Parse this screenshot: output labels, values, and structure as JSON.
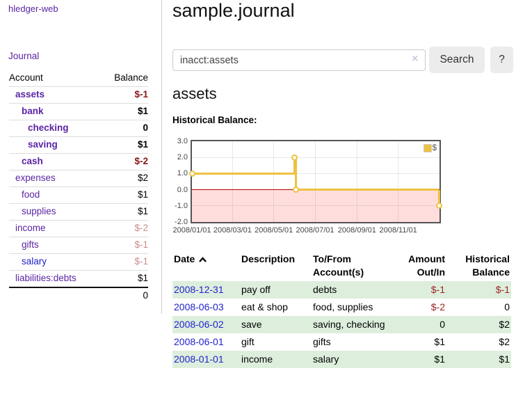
{
  "app": {
    "brand": "hledger-web"
  },
  "colors": {
    "purple_link": "#5a24a4",
    "blue_link": "#2222cc",
    "negative_strong": "#8b1616",
    "negative_soft": "#c98b8b",
    "negative_table": "#9d2424",
    "stripe_green": "#ddeedd",
    "series_yellow": "#edc240",
    "zero_line_red": "#bb0000",
    "below_zero_pink": "#ffdddd",
    "chart_border": "#545454",
    "button_bg": "#ececec"
  },
  "sidebar": {
    "journal_label": "Journal",
    "table": {
      "account_header": "Account",
      "balance_header": "Balance",
      "accounts": [
        {
          "label": "assets",
          "depth": 1,
          "bold": true,
          "link_color": "purple",
          "balance": "$-1",
          "balance_class": "neg-strong"
        },
        {
          "label": "bank",
          "depth": 2,
          "bold": true,
          "link_color": "purple",
          "balance": "$1",
          "balance_class": ""
        },
        {
          "label": "checking",
          "depth": 3,
          "bold": true,
          "link_color": "purple",
          "balance": "0",
          "balance_class": ""
        },
        {
          "label": "saving",
          "depth": 3,
          "bold": true,
          "link_color": "purple",
          "balance": "$1",
          "balance_class": ""
        },
        {
          "label": "cash",
          "depth": 2,
          "bold": true,
          "link_color": "purple",
          "balance": "$-2",
          "balance_class": "neg-strong"
        },
        {
          "label": "expenses",
          "depth": 1,
          "bold": false,
          "link_color": "purple",
          "balance": "$2",
          "balance_class": ""
        },
        {
          "label": "food",
          "depth": 2,
          "bold": false,
          "link_color": "purple",
          "balance": "$1",
          "balance_class": ""
        },
        {
          "label": "supplies",
          "depth": 2,
          "bold": false,
          "link_color": "purple",
          "balance": "$1",
          "balance_class": ""
        },
        {
          "label": "income",
          "depth": 1,
          "bold": false,
          "link_color": "purple",
          "balance": "$-2",
          "balance_class": "neg-soft"
        },
        {
          "label": "gifts",
          "depth": 2,
          "bold": false,
          "link_color": "purple",
          "balance": "$-1",
          "balance_class": "neg-soft"
        },
        {
          "label": "salary",
          "depth": 2,
          "bold": false,
          "link_color": "blue",
          "balance": "$-1",
          "balance_class": "neg-soft"
        },
        {
          "label": "liabilities:debts",
          "depth": 1,
          "bold": false,
          "link_color": "purple",
          "balance": "$1",
          "balance_class": ""
        }
      ],
      "total": "0"
    }
  },
  "main": {
    "title": "sample.journal",
    "search": {
      "value": "inacct:assets",
      "clear_icon": "×",
      "button": "Search",
      "help_button": "?"
    },
    "account_heading": "assets",
    "chart_heading": "Historical Balance:",
    "register": {
      "headers": {
        "date": "Date",
        "description": "Description",
        "accounts": "To/From Account(s)",
        "amount": "Amount Out/In",
        "balance": "Historical Balance"
      },
      "rows": [
        {
          "date": "2008-12-31",
          "description": "pay off",
          "accounts": "debts",
          "amount": "$-1",
          "amount_class": "neg",
          "balance": "$-1",
          "balance_class": "neg"
        },
        {
          "date": "2008-06-03",
          "description": "eat & shop",
          "accounts": "food, supplies",
          "amount": "$-2",
          "amount_class": "neg",
          "balance": "0",
          "balance_class": ""
        },
        {
          "date": "2008-06-02",
          "description": "save",
          "accounts": "saving, checking",
          "amount": "0",
          "amount_class": "",
          "balance": "$2",
          "balance_class": ""
        },
        {
          "date": "2008-06-01",
          "description": "gift",
          "accounts": "gifts",
          "amount": "$1",
          "amount_class": "",
          "balance": "$2",
          "balance_class": ""
        },
        {
          "date": "2008-01-01",
          "description": "income",
          "accounts": "salary",
          "amount": "$1",
          "amount_class": "",
          "balance": "$1",
          "balance_class": ""
        }
      ]
    }
  },
  "chart_data": {
    "type": "line",
    "step": true,
    "title": "Historical Balance",
    "series": [
      {
        "name": "$",
        "color": "#edc240",
        "points": [
          {
            "date": "2008-01-01",
            "value": 1
          },
          {
            "date": "2008-06-01",
            "value": 2
          },
          {
            "date": "2008-06-03",
            "value": 0
          },
          {
            "date": "2008-12-31",
            "value": -1
          }
        ]
      }
    ],
    "xlim": [
      "2008-01-01",
      "2009-01-01"
    ],
    "ylim": [
      -2,
      3
    ],
    "yticks": [
      3.0,
      2.0,
      1.0,
      0.0,
      -1.0,
      -2.0
    ],
    "xticks": [
      "2008/01/01",
      "2008/03/01",
      "2008/05/01",
      "2008/07/01",
      "2008/09/01",
      "2008/11/01"
    ],
    "grid": true,
    "legend_position": "top-right",
    "zero_line_color": "#bb0000",
    "negative_region_color": "#ffdddd"
  }
}
